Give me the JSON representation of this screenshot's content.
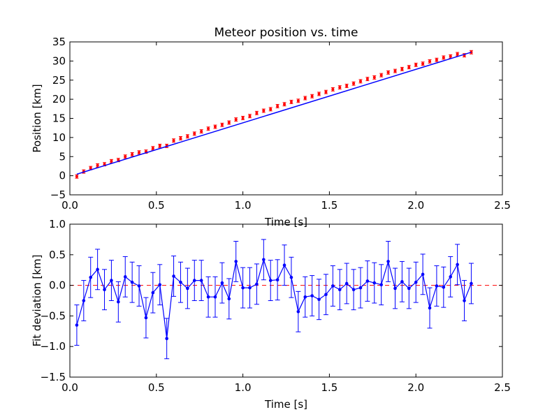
{
  "chart_data": [
    {
      "type": "line",
      "title": "Meteor position vs. time",
      "xlabel": "Time [s]",
      "ylabel": "Position [km]",
      "xlim": [
        0,
        2.5
      ],
      "ylim": [
        -5,
        35
      ],
      "xticks": [
        "0.0",
        "0.5",
        "1.0",
        "1.5",
        "2.0",
        "2.5"
      ],
      "yticks": [
        "-5",
        "0",
        "5",
        "10",
        "15",
        "20",
        "25",
        "30",
        "35"
      ],
      "grid": false,
      "series": [
        {
          "role": "measurements",
          "color": "#ff0000",
          "x": [
            0.04,
            0.08,
            0.12,
            0.16,
            0.2,
            0.24,
            0.28,
            0.32,
            0.36,
            0.4,
            0.44,
            0.48,
            0.52,
            0.56,
            0.6,
            0.64,
            0.68,
            0.72,
            0.76,
            0.8,
            0.84,
            0.88,
            0.92,
            0.96,
            1.0,
            1.04,
            1.08,
            1.12,
            1.16,
            1.2,
            1.24,
            1.28,
            1.32,
            1.36,
            1.4,
            1.44,
            1.48,
            1.52,
            1.56,
            1.6,
            1.64,
            1.68,
            1.72,
            1.76,
            1.8,
            1.84,
            1.88,
            1.92,
            1.96,
            2.0,
            2.04,
            2.08,
            2.12,
            2.16,
            2.2,
            2.24,
            2.28,
            2.32
          ],
          "y": [
            -0.2,
            1.1,
            2.0,
            2.7,
            3.0,
            3.8,
            4.1,
            5.0,
            5.6,
            6.1,
            6.3,
            7.2,
            7.8,
            7.8,
            9.2,
            9.8,
            10.3,
            11.0,
            11.6,
            12.3,
            12.8,
            13.3,
            13.9,
            14.7,
            15.1,
            15.6,
            16.4,
            17.0,
            17.4,
            18.2,
            18.7,
            19.3,
            19.6,
            20.3,
            20.8,
            21.4,
            21.9,
            22.6,
            23.1,
            23.5,
            24.1,
            24.7,
            25.3,
            25.7,
            26.3,
            27.0,
            27.4,
            27.9,
            28.4,
            29.0,
            29.3,
            29.9,
            30.3,
            30.9,
            31.2,
            31.8,
            31.5,
            32.3
          ],
          "error": 0.45
        },
        {
          "role": "fit",
          "color": "#0000ff",
          "x": [
            0.04,
            2.32
          ],
          "y": [
            0.4,
            32.3
          ]
        }
      ]
    },
    {
      "type": "line",
      "title": "",
      "xlabel": "Time [s]",
      "ylabel": "Fit deviation [km]",
      "xlim": [
        0,
        2.5
      ],
      "ylim": [
        -1.5,
        1.0
      ],
      "xticks": [
        "0.0",
        "0.5",
        "1.0",
        "1.5",
        "2.0",
        "2.5"
      ],
      "yticks": [
        "-1.5",
        "-1.0",
        "-0.5",
        "0.0",
        "0.5",
        "1.0"
      ],
      "grid": false,
      "zero_line_color": "#ff0000",
      "series": [
        {
          "role": "residuals",
          "color": "#0000ff",
          "x": [
            0.04,
            0.08,
            0.12,
            0.16,
            0.2,
            0.24,
            0.28,
            0.32,
            0.36,
            0.4,
            0.44,
            0.48,
            0.52,
            0.56,
            0.6,
            0.64,
            0.68,
            0.72,
            0.76,
            0.8,
            0.84,
            0.88,
            0.92,
            0.96,
            1.0,
            1.04,
            1.08,
            1.12,
            1.16,
            1.2,
            1.24,
            1.28,
            1.32,
            1.36,
            1.4,
            1.44,
            1.48,
            1.52,
            1.56,
            1.6,
            1.64,
            1.68,
            1.72,
            1.76,
            1.8,
            1.84,
            1.88,
            1.92,
            1.96,
            2.0,
            2.04,
            2.08,
            2.12,
            2.16,
            2.2,
            2.24,
            2.28,
            2.32
          ],
          "y": [
            -0.65,
            -0.25,
            0.13,
            0.26,
            -0.07,
            0.08,
            -0.27,
            0.14,
            0.05,
            -0.01,
            -0.53,
            -0.12,
            0.01,
            -0.87,
            0.15,
            0.05,
            -0.05,
            0.08,
            0.08,
            -0.19,
            -0.19,
            0.04,
            -0.22,
            0.39,
            -0.04,
            -0.04,
            0.02,
            0.42,
            0.08,
            0.09,
            0.33,
            0.13,
            -0.43,
            -0.19,
            -0.17,
            -0.23,
            -0.15,
            -0.01,
            -0.07,
            0.03,
            -0.07,
            -0.04,
            0.07,
            0.04,
            0.01,
            0.39,
            -0.05,
            0.06,
            -0.05,
            0.05,
            0.18,
            -0.37,
            -0.01,
            -0.03,
            0.14,
            0.34,
            -0.25,
            0.03
          ],
          "error": 0.33
        }
      ]
    }
  ]
}
